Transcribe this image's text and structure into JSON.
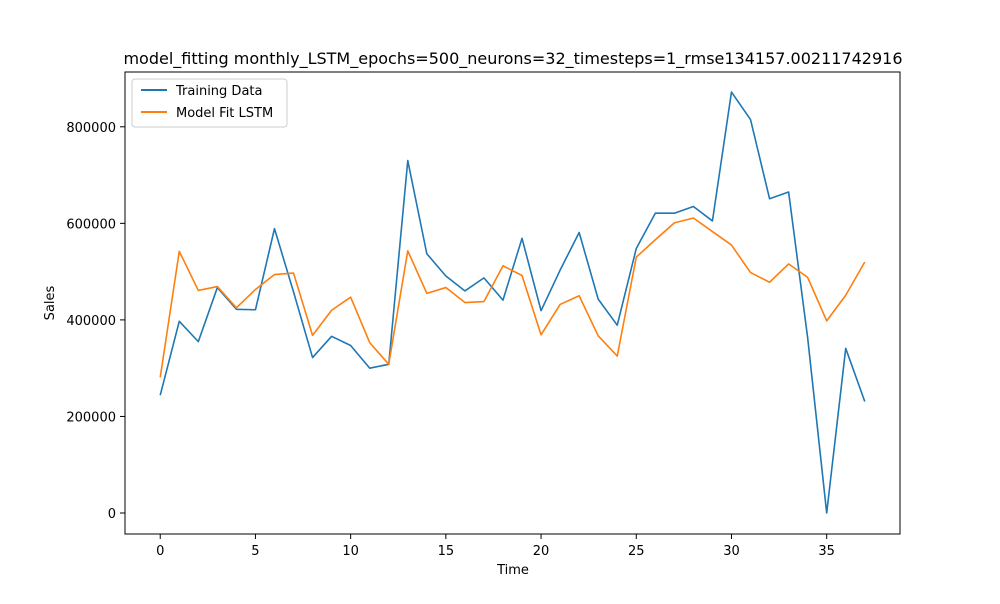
{
  "chart_data": {
    "type": "line",
    "title": "model_fitting monthly_LSTM_epochs=500_neurons=32_timesteps=1_rmse134157.00211742916",
    "xlabel": "Time",
    "ylabel": "Sales",
    "xlim": [
      -1.85,
      38.85
    ],
    "ylim": [
      -43500,
      913500
    ],
    "xticks": [
      0,
      5,
      10,
      15,
      20,
      25,
      30,
      35
    ],
    "xtick_labels": [
      "0",
      "5",
      "10",
      "15",
      "20",
      "25",
      "30",
      "35"
    ],
    "yticks": [
      0,
      200000,
      400000,
      600000,
      800000
    ],
    "ytick_labels": [
      "0",
      "200000",
      "400000",
      "600000",
      "800000"
    ],
    "grid": false,
    "legend_position": "top-left",
    "x": [
      0,
      1,
      2,
      3,
      4,
      5,
      6,
      7,
      8,
      9,
      10,
      11,
      12,
      13,
      14,
      15,
      16,
      17,
      18,
      19,
      20,
      21,
      22,
      23,
      24,
      25,
      26,
      27,
      28,
      29,
      30,
      31,
      32,
      33,
      34,
      35,
      36,
      37
    ],
    "series": [
      {
        "name": "Training Data",
        "color": "#1f77b4",
        "values": [
          244000,
          397000,
          355000,
          467000,
          422000,
          421000,
          589000,
          458000,
          322000,
          366000,
          347000,
          300000,
          308000,
          730000,
          537000,
          491000,
          460000,
          487000,
          441000,
          569000,
          419000,
          503000,
          581000,
          443000,
          389000,
          548000,
          621000,
          621000,
          635000,
          605000,
          872000,
          815000,
          651000,
          665000,
          363000,
          0,
          341000,
          231000
        ]
      },
      {
        "name": "Model Fit LSTM",
        "color": "#ff7f0e",
        "values": [
          281000,
          542000,
          461000,
          469000,
          425000,
          463000,
          494000,
          497000,
          368000,
          420000,
          447000,
          353000,
          308000,
          543000,
          455000,
          467000,
          436000,
          438000,
          512000,
          492000,
          369000,
          432000,
          450000,
          367000,
          325000,
          530000,
          566000,
          601000,
          611000,
          583000,
          555000,
          498000,
          478000,
          516000,
          488000,
          398000,
          451000,
          520000
        ]
      }
    ]
  }
}
